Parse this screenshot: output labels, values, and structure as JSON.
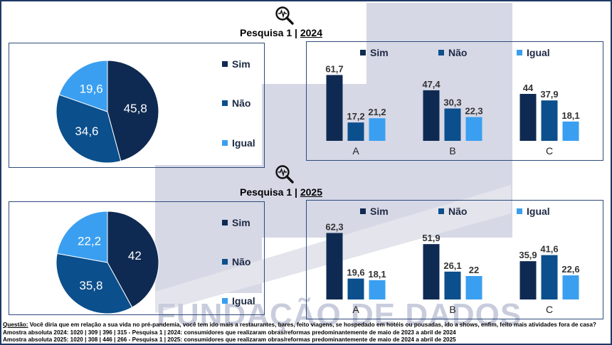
{
  "colors": {
    "sim": "#0f2a52",
    "nao": "#0b4f8c",
    "igual": "#3a9ff0",
    "frame": "#1f3864"
  },
  "watermark": "FUNDAÇÃO DE DADOS",
  "sections": [
    {
      "title_prefix": "Pesquisa 1 | ",
      "year": "2024"
    },
    {
      "title_prefix": "Pesquisa 1 | ",
      "year": "2025"
    }
  ],
  "legend": [
    "Sim",
    "Não",
    "Igual"
  ],
  "chart_data": [
    {
      "type": "pie",
      "title": "Pesquisa 1 | 2024",
      "labels": [
        "Sim",
        "Não",
        "Igual"
      ],
      "values": [
        45.8,
        34.6,
        19.6
      ],
      "value_labels": [
        "45,8",
        "34,6",
        "19,6"
      ]
    },
    {
      "type": "bar",
      "title": "Pesquisa 1 | 2024",
      "categories": [
        "A",
        "B",
        "C"
      ],
      "series": [
        {
          "name": "Sim",
          "values": [
            61.7,
            47.4,
            44
          ],
          "labels": [
            "61,7",
            "47,4",
            "44"
          ]
        },
        {
          "name": "Não",
          "values": [
            17.2,
            30.3,
            37.9
          ],
          "labels": [
            "17,2",
            "30,3",
            "37,9"
          ]
        },
        {
          "name": "Igual",
          "values": [
            21.2,
            22.3,
            18.1
          ],
          "labels": [
            "21,2",
            "22,3",
            "18,1"
          ]
        }
      ]
    },
    {
      "type": "pie",
      "title": "Pesquisa 1 | 2025",
      "labels": [
        "Sim",
        "Não",
        "Igual"
      ],
      "values": [
        42,
        35.8,
        22.2
      ],
      "value_labels": [
        "42",
        "35,8",
        "22,2"
      ]
    },
    {
      "type": "bar",
      "title": "Pesquisa 1 | 2025",
      "categories": [
        "A",
        "B",
        "C"
      ],
      "series": [
        {
          "name": "Sim",
          "values": [
            62.3,
            51.9,
            35.9
          ],
          "labels": [
            "62,3",
            "51,9",
            "35,9"
          ]
        },
        {
          "name": "Não",
          "values": [
            19.6,
            26.1,
            41.6
          ],
          "labels": [
            "19,6",
            "26,1",
            "41,6"
          ]
        },
        {
          "name": "Igual",
          "values": [
            18.1,
            22,
            22.6
          ],
          "labels": [
            "18,1",
            "22",
            "22,6"
          ]
        }
      ]
    }
  ],
  "footer": {
    "question_label": "Questão:",
    "question_text": " Você diria que em relação a sua vida no pré-pandemia, você tem ido mais a restaurantes, bares, feito viagens, se hospedado em hotéis ou pousadas, ido a shows, enfim, feito mais atividades fora de casa?",
    "line2": "Amostra absoluta 2024: 1020 | 309 | 396 | 315 - Pesquisa 1 | 2024: consumidores que realizaram obras/reformas predominantemente de maio de 2023 a abril de 2024",
    "line3": "Amostra absoluta 2025: 1020 | 308 | 446 | 266 - Pesquisa 1 | 2025: consumidores que realizaram obras/reformas predominantemente de maio de 2024 a abril de 2025"
  }
}
